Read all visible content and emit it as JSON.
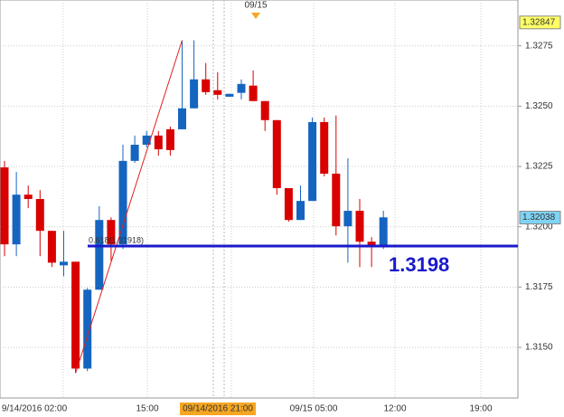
{
  "chart_data": {
    "type": "candlestick",
    "top_marker": "09/15",
    "x_labels": [
      "9/14/2016 02:00",
      "15:00",
      "09/14/2016 21:00",
      "09/15 05:00",
      "12:00",
      "19:00"
    ],
    "x_label_highlight": "09/14/2016 21:00",
    "ylim": [
      1.3129,
      1.3294
    ],
    "yticks": [
      {
        "value": 1.315,
        "label": "1.3150"
      },
      1.3175,
      {
        "value": 1.32,
        "label": "1.3200"
      },
      1.3225,
      {
        "value": 1.325,
        "label": "1.3250"
      },
      1.3275
    ],
    "grid": true,
    "up_color": "#1565c0",
    "down_color": "#d90000",
    "open": [
      1.32246,
      1.31927,
      1.32133,
      1.32115,
      1.31983,
      1.3184,
      1.31855,
      1.31412,
      1.31739,
      1.32028,
      1.31927,
      1.32273,
      1.3234,
      1.32378,
      1.32404,
      1.32404,
      1.32491,
      1.32611,
      1.32566,
      1.32539,
      1.32555,
      1.32585,
      1.32521,
      1.32442,
      1.3216,
      1.32028,
      1.32107,
      1.32434,
      1.3222,
      1.32002,
      1.32066,
      1.31938,
      1.31919
    ],
    "high": [
      1.32273,
      1.32227,
      1.32171,
      1.32152,
      1.31983,
      1.31983,
      1.31855,
      1.31746,
      1.32085,
      1.32039,
      1.3234,
      1.32378,
      1.32397,
      1.32397,
      1.32415,
      1.32773,
      1.32773,
      1.32679,
      1.32641,
      1.32551,
      1.32611,
      1.32648,
      1.32521,
      1.32442,
      1.3216,
      1.32171,
      1.32453,
      1.32453,
      1.32461,
      1.32284,
      1.32115,
      1.31957,
      1.32066
    ],
    "low": [
      1.31878,
      1.31878,
      1.32077,
      1.31878,
      1.31833,
      1.31795,
      1.31393,
      1.31401,
      1.31739,
      1.31859,
      1.31908,
      1.32265,
      1.32329,
      1.32295,
      1.32295,
      1.32404,
      1.32491,
      1.32547,
      1.32528,
      1.32539,
      1.32528,
      1.32521,
      1.32397,
      1.32133,
      1.32021,
      1.32028,
      1.32107,
      1.32209,
      1.31964,
      1.31851,
      1.31833,
      1.31833,
      1.31908
    ],
    "close": [
      1.31927,
      1.32133,
      1.32115,
      1.31983,
      1.31851,
      1.31855,
      1.31412,
      1.31739,
      1.32028,
      1.31927,
      1.32273,
      1.3234,
      1.32378,
      1.32321,
      1.32318,
      1.32491,
      1.32611,
      1.32558,
      1.32547,
      1.32551,
      1.32592,
      1.32521,
      1.32442,
      1.3216,
      1.32028,
      1.32107,
      1.32434,
      1.3222,
      1.32002,
      1.32066,
      1.31938,
      1.31923,
      1.32039
    ],
    "trendline_color": "#e02020",
    "support": {
      "value": 1.3192,
      "label": "0.618(1.31918)",
      "annotation": "1.3198",
      "color": "#1a1acc"
    },
    "high_box": {
      "value": 1.32847,
      "label": "1.32847",
      "color": "#ffff66"
    },
    "last_box": {
      "value": 1.32038,
      "label": "1.32038",
      "color": "#7fd4f5"
    }
  }
}
